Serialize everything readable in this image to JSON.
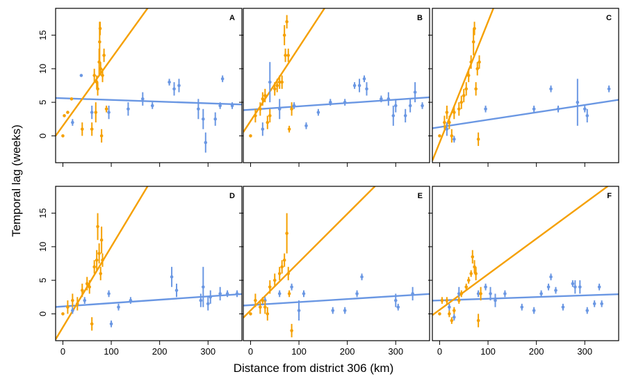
{
  "chart_data": {
    "type": "scatter",
    "ylabel": "Temporal lag (weeks)",
    "xlabel": "Distance from district 306 (km)",
    "colors": {
      "orange": "#F5A000",
      "blue": "#6A97E3"
    },
    "y_ticks": [
      "0",
      "5",
      "10",
      "15"
    ],
    "x_ticks_row1": [],
    "x_ticks_row2": [
      "0",
      "100",
      "200",
      "300"
    ],
    "xlim": [
      -15,
      370
    ],
    "ylim": [
      -4,
      19
    ],
    "panels": [
      {
        "label": "A",
        "orange_line": {
          "intercept": 1.5,
          "slope": 0.1
        },
        "blue_line": {
          "intercept": 5.6,
          "slope": -0.0025
        },
        "orange_points": [
          [
            0,
            0,
            0
          ],
          [
            3,
            3,
            0
          ],
          [
            10,
            3.5,
            0
          ],
          [
            18,
            5.5,
            0
          ],
          [
            40,
            1,
            1
          ],
          [
            60,
            1,
            1
          ],
          [
            68,
            3.5,
            1.5
          ],
          [
            72,
            7,
            1
          ],
          [
            75,
            11,
            2
          ],
          [
            76,
            14,
            3
          ],
          [
            77,
            16,
            1
          ],
          [
            78,
            10,
            1
          ],
          [
            80,
            0,
            1
          ],
          [
            82,
            9,
            1
          ],
          [
            85,
            12,
            1
          ],
          [
            90,
            4,
            0.5
          ],
          [
            65,
            9,
            1
          ],
          [
            70,
            8,
            1
          ]
        ],
        "blue_points": [
          [
            20,
            2,
            0.5
          ],
          [
            38,
            9,
            0
          ],
          [
            60,
            3.5,
            1
          ],
          [
            95,
            3.5,
            1
          ],
          [
            135,
            4,
            1
          ],
          [
            165,
            5.5,
            1
          ],
          [
            185,
            4.5,
            0.5
          ],
          [
            220,
            8,
            0.5
          ],
          [
            230,
            7,
            1
          ],
          [
            240,
            7.5,
            1
          ],
          [
            280,
            4,
            1.5
          ],
          [
            290,
            2.5,
            1.5
          ],
          [
            295,
            -1,
            1.5
          ],
          [
            315,
            2.5,
            1
          ],
          [
            325,
            4.5,
            0.5
          ],
          [
            330,
            8.5,
            0.5
          ],
          [
            350,
            4.5,
            0.5
          ]
        ]
      },
      {
        "label": "B",
        "orange_line": {
          "intercept": 2.2,
          "slope": 0.11
        },
        "blue_line": {
          "intercept": 3.9,
          "slope": 0.005
        },
        "orange_points": [
          [
            0,
            0,
            0
          ],
          [
            10,
            3,
            1
          ],
          [
            20,
            4,
            1
          ],
          [
            25,
            5.5,
            1
          ],
          [
            30,
            6,
            1
          ],
          [
            35,
            2,
            1
          ],
          [
            40,
            3,
            1
          ],
          [
            50,
            7,
            1
          ],
          [
            55,
            7.5,
            1
          ],
          [
            60,
            8,
            1
          ],
          [
            65,
            8,
            1
          ],
          [
            70,
            15,
            1.5
          ],
          [
            75,
            17,
            1
          ],
          [
            72,
            12,
            1
          ],
          [
            78,
            12,
            1
          ],
          [
            80,
            1,
            0.5
          ],
          [
            85,
            4,
            1
          ]
        ],
        "blue_points": [
          [
            25,
            1,
            1
          ],
          [
            40,
            8,
            3
          ],
          [
            60,
            4,
            1.5
          ],
          [
            90,
            4.5,
            0.5
          ],
          [
            115,
            1.5,
            0.5
          ],
          [
            140,
            3.5,
            0.5
          ],
          [
            165,
            5,
            0.5
          ],
          [
            195,
            5,
            0.5
          ],
          [
            215,
            7.5,
            0.5
          ],
          [
            225,
            7.5,
            1
          ],
          [
            235,
            8.5,
            0.5
          ],
          [
            240,
            7,
            1
          ],
          [
            270,
            5.5,
            0.5
          ],
          [
            285,
            5.5,
            1
          ],
          [
            295,
            3,
            1.5
          ],
          [
            300,
            4.5,
            1
          ],
          [
            320,
            3,
            1
          ],
          [
            330,
            4.5,
            1
          ],
          [
            340,
            6.5,
            1.5
          ],
          [
            355,
            4.5,
            0.5
          ]
        ]
      },
      {
        "label": "C",
        "orange_line": {
          "intercept": -1.0,
          "slope": 0.18
        },
        "blue_line": {
          "intercept": 1.3,
          "slope": 0.011
        },
        "orange_points": [
          [
            0,
            0,
            0
          ],
          [
            10,
            2,
            1
          ],
          [
            15,
            3.5,
            1
          ],
          [
            20,
            2,
            1
          ],
          [
            25,
            0,
            1
          ],
          [
            30,
            3.5,
            1
          ],
          [
            40,
            4,
            1
          ],
          [
            45,
            5,
            1
          ],
          [
            50,
            6,
            1
          ],
          [
            55,
            7,
            1
          ],
          [
            60,
            9,
            1
          ],
          [
            65,
            11,
            1
          ],
          [
            70,
            14,
            2
          ],
          [
            72,
            16,
            1
          ],
          [
            75,
            7,
            1
          ],
          [
            78,
            10,
            1
          ],
          [
            80,
            -0.5,
            1
          ],
          [
            82,
            11,
            1
          ]
        ],
        "blue_points": [
          [
            15,
            1,
            1
          ],
          [
            30,
            -0.5,
            0.5
          ],
          [
            95,
            4,
            0.5
          ],
          [
            195,
            4,
            0.5
          ],
          [
            230,
            7,
            0.5
          ],
          [
            245,
            4,
            0.5
          ],
          [
            285,
            5,
            3.5
          ],
          [
            300,
            4,
            0.5
          ],
          [
            305,
            3,
            1
          ],
          [
            350,
            7,
            0.5
          ]
        ]
      },
      {
        "label": "D",
        "orange_line": {
          "intercept": -2.0,
          "slope": 0.12
        },
        "blue_line": {
          "intercept": 1.1,
          "slope": 0.005
        },
        "orange_points": [
          [
            0,
            0,
            0
          ],
          [
            10,
            1,
            1
          ],
          [
            20,
            2,
            1
          ],
          [
            30,
            1.5,
            1
          ],
          [
            40,
            3.5,
            1
          ],
          [
            50,
            4.5,
            1
          ],
          [
            55,
            4,
            1
          ],
          [
            60,
            -1.5,
            1
          ],
          [
            65,
            7,
            1
          ],
          [
            70,
            8,
            1.5
          ],
          [
            72,
            13,
            2
          ],
          [
            75,
            9,
            1.5
          ],
          [
            78,
            6,
            1
          ],
          [
            80,
            11,
            2
          ],
          [
            82,
            8,
            1
          ]
        ],
        "blue_points": [
          [
            20,
            0.5,
            0.5
          ],
          [
            45,
            2,
            0.5
          ],
          [
            95,
            3,
            0.5
          ],
          [
            100,
            -1.5,
            0.5
          ],
          [
            115,
            1,
            0.5
          ],
          [
            140,
            2,
            0.5
          ],
          [
            225,
            5.5,
            1.5
          ],
          [
            235,
            3.5,
            1
          ],
          [
            285,
            2,
            1
          ],
          [
            290,
            4,
            3
          ],
          [
            300,
            1.5,
            1
          ],
          [
            305,
            2.5,
            1
          ],
          [
            325,
            3,
            1
          ],
          [
            340,
            3,
            0.5
          ],
          [
            360,
            3,
            0.5
          ]
        ]
      },
      {
        "label": "E",
        "orange_line": {
          "intercept": 0.5,
          "slope": 0.072
        },
        "blue_line": {
          "intercept": 1.3,
          "slope": 0.0045
        },
        "orange_points": [
          [
            0,
            0,
            0
          ],
          [
            10,
            2,
            1
          ],
          [
            20,
            1,
            1
          ],
          [
            25,
            2,
            0.5
          ],
          [
            30,
            1,
            1
          ],
          [
            35,
            0,
            1
          ],
          [
            40,
            4,
            1
          ],
          [
            50,
            5,
            1
          ],
          [
            60,
            6,
            1
          ],
          [
            65,
            7,
            1
          ],
          [
            70,
            8,
            1
          ],
          [
            75,
            12,
            3
          ],
          [
            78,
            6,
            1
          ],
          [
            80,
            3,
            0.5
          ],
          [
            85,
            -2.5,
            1
          ]
        ],
        "blue_points": [
          [
            30,
            2,
            0.5
          ],
          [
            60,
            3,
            0.5
          ],
          [
            85,
            4,
            0.5
          ],
          [
            100,
            0.5,
            1.5
          ],
          [
            110,
            3,
            0.5
          ],
          [
            170,
            0.5,
            0.5
          ],
          [
            195,
            0.5,
            0.5
          ],
          [
            220,
            3,
            0.5
          ],
          [
            230,
            5.5,
            0.5
          ],
          [
            300,
            2,
            1
          ],
          [
            305,
            1,
            0.5
          ],
          [
            335,
            3,
            1
          ]
        ]
      },
      {
        "label": "F",
        "orange_line": {
          "intercept": 0.6,
          "slope": 0.053
        },
        "blue_line": {
          "intercept": 2.0,
          "slope": 0.0025
        },
        "orange_points": [
          [
            0,
            0,
            0
          ],
          [
            5,
            2,
            0.5
          ],
          [
            15,
            2,
            0.5
          ],
          [
            20,
            0,
            0.5
          ],
          [
            25,
            -1,
            0.5
          ],
          [
            30,
            0.5,
            0.5
          ],
          [
            40,
            2,
            0.5
          ],
          [
            45,
            3,
            0.5
          ],
          [
            55,
            4,
            0.5
          ],
          [
            60,
            5,
            0.5
          ],
          [
            65,
            6,
            0.5
          ],
          [
            68,
            8.5,
            1
          ],
          [
            72,
            7,
            1
          ],
          [
            75,
            6,
            1
          ],
          [
            80,
            -1,
            1
          ],
          [
            85,
            3,
            1
          ]
        ],
        "blue_points": [
          [
            20,
            1,
            0.5
          ],
          [
            30,
            -0.5,
            0.5
          ],
          [
            40,
            3,
            1
          ],
          [
            80,
            3,
            0.5
          ],
          [
            95,
            4,
            0.5
          ],
          [
            105,
            3,
            1
          ],
          [
            115,
            2,
            1
          ],
          [
            135,
            3,
            0.5
          ],
          [
            170,
            1,
            0.5
          ],
          [
            195,
            0.5,
            0.5
          ],
          [
            210,
            3,
            0.5
          ],
          [
            225,
            4,
            0.5
          ],
          [
            230,
            5.5,
            0.5
          ],
          [
            240,
            3.5,
            0.5
          ],
          [
            255,
            1,
            0.5
          ],
          [
            275,
            4.5,
            0.5
          ],
          [
            280,
            4,
            1
          ],
          [
            290,
            4,
            1
          ],
          [
            305,
            0.5,
            0.5
          ],
          [
            320,
            1.5,
            0.5
          ],
          [
            330,
            4,
            0.5
          ],
          [
            335,
            1.5,
            0.5
          ]
        ]
      }
    ]
  }
}
